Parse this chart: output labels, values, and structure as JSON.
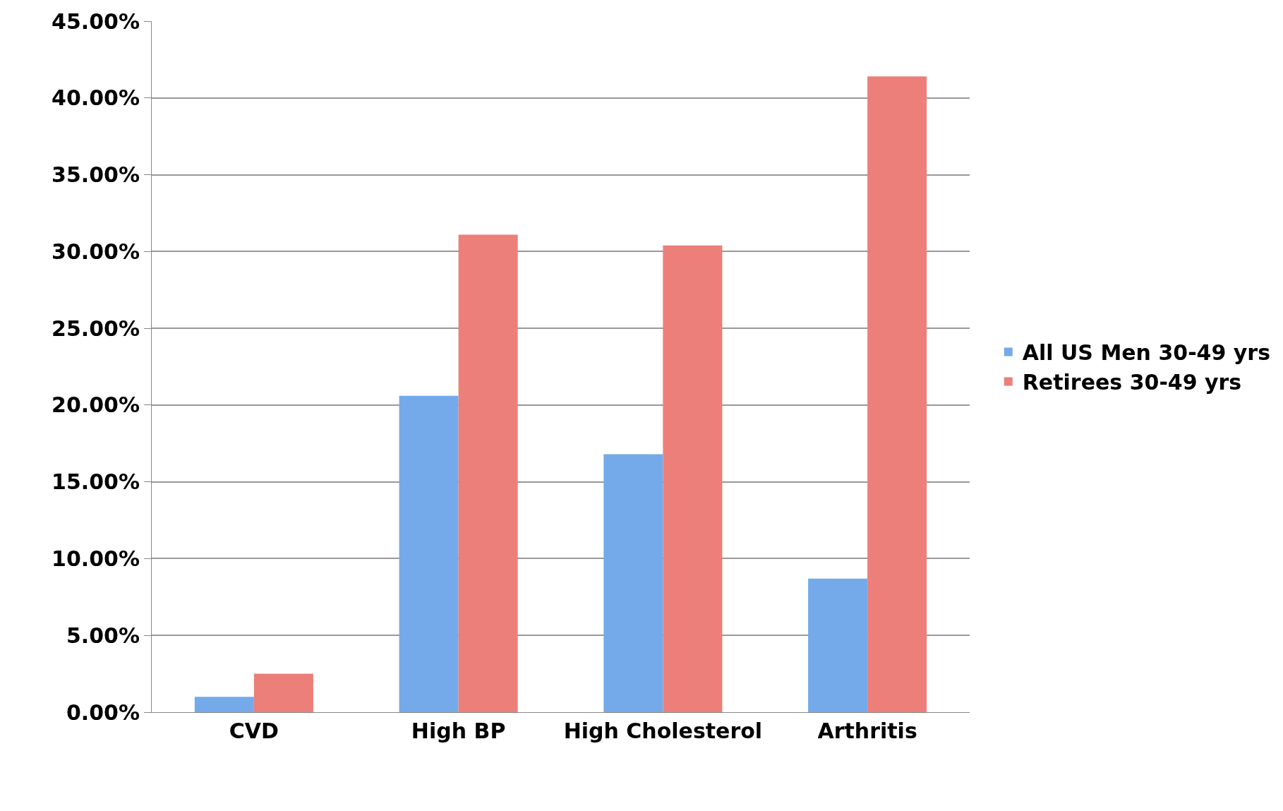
{
  "chart_data": {
    "type": "bar",
    "categories": [
      "CVD",
      "High BP",
      "High Cholesterol",
      "Arthritis"
    ],
    "series": [
      {
        "name": "All US Men 30-49 yrs",
        "color": "#74aaea",
        "values": [
          1.0,
          20.6,
          16.8,
          8.7
        ]
      },
      {
        "name": "Retirees 30-49 yrs",
        "color": "#ec7f79",
        "values": [
          2.5,
          31.1,
          30.4,
          41.4
        ]
      }
    ],
    "ylim": [
      0,
      45
    ],
    "yticks": [
      {
        "value": 0,
        "label": "0.00%"
      },
      {
        "value": 5,
        "label": "5.00%"
      },
      {
        "value": 10,
        "label": "10.00%"
      },
      {
        "value": 15,
        "label": "15.00%"
      },
      {
        "value": 20,
        "label": "20.00%"
      },
      {
        "value": 25,
        "label": "25.00%"
      },
      {
        "value": 30,
        "label": "30.00%"
      },
      {
        "value": 35,
        "label": "35.00%"
      },
      {
        "value": 40,
        "label": "40.00%"
      },
      {
        "value": 45,
        "label": "45.00%"
      }
    ],
    "grid": "y",
    "legend": "right"
  }
}
